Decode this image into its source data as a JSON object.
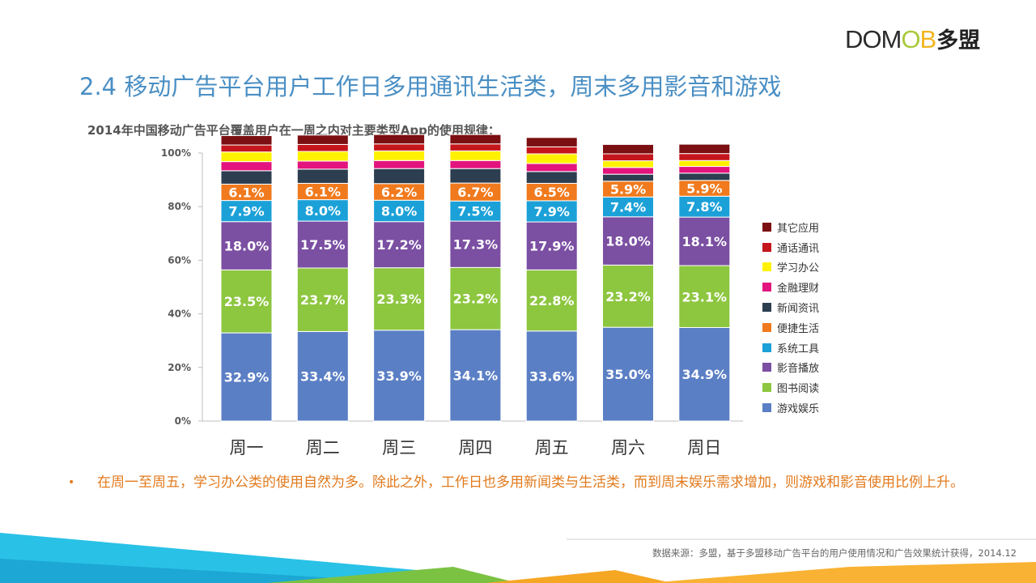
{
  "logo": {
    "letters": [
      {
        "t": "D",
        "c": "#2b2b2b"
      },
      {
        "t": "O",
        "c": "#2b2b2b"
      },
      {
        "t": "M",
        "c": "#2b2b2b"
      },
      {
        "t": "O",
        "c": "#a8c93a"
      },
      {
        "t": "B",
        "c": "#f2b51f"
      }
    ],
    "cn": "多盟"
  },
  "slide": {
    "title": "2.4 移动广告平台用户工作日多用通讯生活类，周末多用影音和游戏",
    "subtitle": "2014年中国移动广告平台覆盖用户在一周之内对主要类型App的使用规律：",
    "bullet": "在周一至周五，学习办公类的使用自然为多。除此之外，工作日也多用新闻类与生活类，而到周末娱乐需求增加，则游戏和影音使用比例上升。",
    "source": "数据来源：多盟，基于多盟移动广告平台的用户使用情况和广告效果统计获得，2014.12"
  },
  "chart_data": {
    "type": "bar",
    "stacked": true,
    "categories": [
      "周一",
      "周二",
      "周三",
      "周四",
      "周五",
      "周六",
      "周日"
    ],
    "yticks": [
      "0%",
      "20%",
      "40%",
      "60%",
      "80%",
      "100%"
    ],
    "ylim": [
      0,
      100
    ],
    "series": [
      {
        "name": "游戏娱乐",
        "color": "#5b7fc5",
        "values": [
          32.9,
          33.4,
          33.9,
          34.1,
          33.6,
          35.0,
          34.9
        ],
        "labels": [
          "32.9%",
          "33.4%",
          "33.9%",
          "34.1%",
          "33.6%",
          "35.0%",
          "34.9%"
        ]
      },
      {
        "name": "图书阅读",
        "color": "#8dc63f",
        "values": [
          23.5,
          23.7,
          23.3,
          23.2,
          22.8,
          23.2,
          23.1
        ],
        "labels": [
          "23.5%",
          "23.7%",
          "23.3%",
          "23.2%",
          "22.8%",
          "23.2%",
          "23.1%"
        ]
      },
      {
        "name": "影音播放",
        "color": "#7b4fa2",
        "values": [
          18.0,
          17.5,
          17.2,
          17.3,
          17.9,
          18.0,
          18.1
        ],
        "labels": [
          "18.0%",
          "17.5%",
          "17.2%",
          "17.3%",
          "17.9%",
          "18.0%",
          "18.1%"
        ]
      },
      {
        "name": "系统工具",
        "color": "#1ba1d8",
        "values": [
          7.9,
          8.0,
          8.0,
          7.5,
          7.9,
          7.4,
          7.8
        ],
        "labels": [
          "7.9%",
          "8.0%",
          "8.0%",
          "7.5%",
          "7.9%",
          "7.4%",
          "7.8%"
        ]
      },
      {
        "name": "便捷生活",
        "color": "#f07a1d",
        "values": [
          6.1,
          6.1,
          6.2,
          6.7,
          6.5,
          5.9,
          5.9
        ],
        "labels": [
          "6.1%",
          "6.1%",
          "6.2%",
          "6.7%",
          "6.5%",
          "5.9%",
          "5.9%"
        ]
      },
      {
        "name": "新闻资讯",
        "color": "#2c3e50",
        "values": [
          5.0,
          5.3,
          5.6,
          5.4,
          4.4,
          2.6,
          2.7
        ],
        "labels": [
          "",
          "",
          "",
          "",
          "",
          "",
          ""
        ]
      },
      {
        "name": "金融理财",
        "color": "#e3147e",
        "values": [
          3.4,
          3.0,
          3.0,
          3.0,
          3.0,
          2.5,
          2.5
        ],
        "labels": [
          "",
          "",
          "",
          "",
          "",
          "",
          ""
        ]
      },
      {
        "name": "学习办公",
        "color": "#fff200",
        "values": [
          3.6,
          3.6,
          3.6,
          3.6,
          3.6,
          2.5,
          2.2
        ],
        "labels": [
          "",
          "",
          "",
          "",
          "",
          "",
          ""
        ]
      },
      {
        "name": "通话通讯",
        "color": "#c4161c",
        "values": [
          2.6,
          2.6,
          2.6,
          2.6,
          2.6,
          2.6,
          2.6
        ],
        "labels": [
          "",
          "",
          "",
          "",
          "",
          "",
          ""
        ]
      },
      {
        "name": "其它应用",
        "color": "#7b0f12",
        "values": [
          3.5,
          3.5,
          3.5,
          3.5,
          3.5,
          3.5,
          3.5
        ],
        "labels": [
          "",
          "",
          "",
          "",
          "",
          "",
          ""
        ]
      }
    ]
  }
}
